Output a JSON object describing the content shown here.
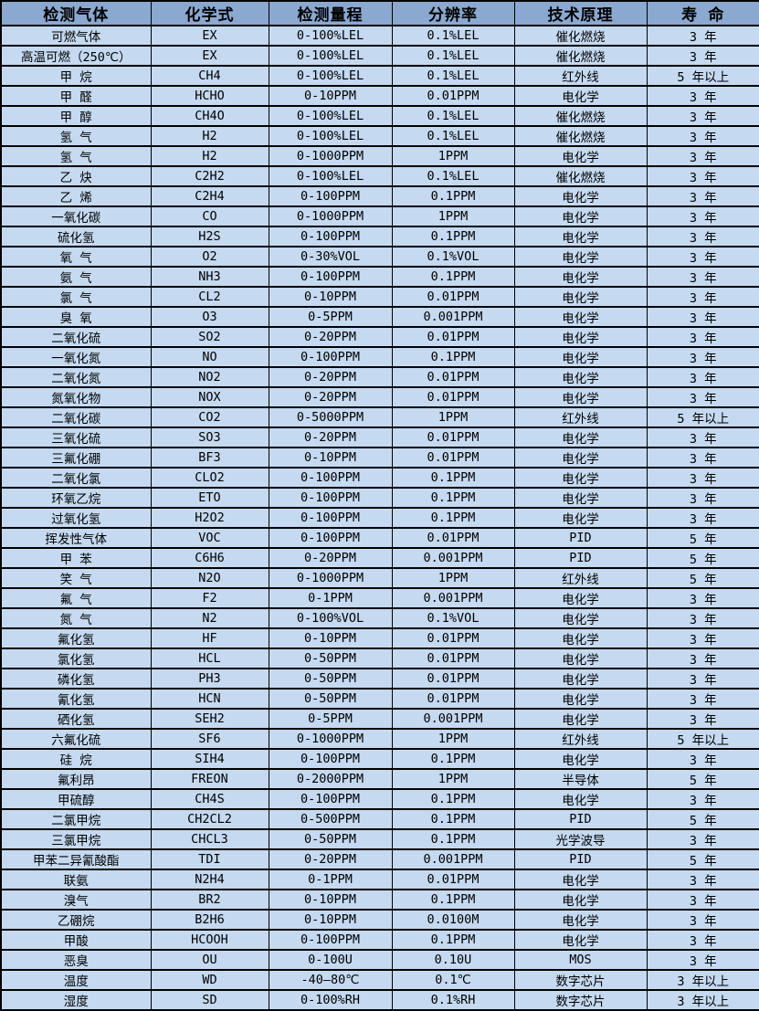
{
  "table": {
    "columns": [
      {
        "label": "检测气体"
      },
      {
        "label": "化学式"
      },
      {
        "label": "检测量程"
      },
      {
        "label": "分辨率"
      },
      {
        "label": "技术原理"
      },
      {
        "label": "寿 命"
      }
    ],
    "rows": [
      [
        "可燃气体",
        "EX",
        "0-100%LEL",
        "0.1%LEL",
        "催化燃烧",
        "3 年"
      ],
      [
        "高温可燃（250℃）",
        "EX",
        "0-100%LEL",
        "0.1%LEL",
        "催化燃烧",
        "3 年"
      ],
      [
        "甲 烷",
        "CH4",
        "0-100%LEL",
        "0.1%LEL",
        "红外线",
        "5 年以上"
      ],
      [
        "甲 醛",
        "HCHO",
        "0-10PPM",
        "0.01PPM",
        "电化学",
        "3 年"
      ],
      [
        "甲 醇",
        "CH4O",
        "0-100%LEL",
        "0.1%LEL",
        "催化燃烧",
        "3 年"
      ],
      [
        "氢 气",
        "H2",
        "0-100%LEL",
        "0.1%LEL",
        "催化燃烧",
        "3 年"
      ],
      [
        "氢 气",
        "H2",
        "0-1000PPM",
        "1PPM",
        "电化学",
        "3 年"
      ],
      [
        "乙 炔",
        "C2H2",
        "0-100%LEL",
        "0.1%LEL",
        "催化燃烧",
        "3 年"
      ],
      [
        "乙 烯",
        "C2H4",
        "0-100PPM",
        "0.1PPM",
        "电化学",
        "3 年"
      ],
      [
        "一氧化碳",
        "CO",
        "0-1000PPM",
        "1PPM",
        "电化学",
        "3 年"
      ],
      [
        "硫化氢",
        "H2S",
        "0-100PPM",
        "0.1PPM",
        "电化学",
        "3 年"
      ],
      [
        "氧 气",
        "O2",
        "0-30%VOL",
        "0.1%VOL",
        "电化学",
        "3 年"
      ],
      [
        "氨 气",
        "NH3",
        "0-100PPM",
        "0.1PPM",
        "电化学",
        "3 年"
      ],
      [
        "氯 气",
        "CL2",
        "0-10PPM",
        "0.01PPM",
        "电化学",
        "3 年"
      ],
      [
        "臭 氧",
        "O3",
        "0-5PPM",
        "0.001PPM",
        "电化学",
        "3 年"
      ],
      [
        "二氧化硫",
        "SO2",
        "0-20PPM",
        "0.01PPM",
        "电化学",
        "3 年"
      ],
      [
        "一氧化氮",
        "NO",
        "0-100PPM",
        "0.1PPM",
        "电化学",
        "3 年"
      ],
      [
        "二氧化氮",
        "NO2",
        "0-20PPM",
        "0.01PPM",
        "电化学",
        "3 年"
      ],
      [
        "氮氧化物",
        "NOX",
        "0-20PPM",
        "0.01PPM",
        "电化学",
        "3 年"
      ],
      [
        "二氧化碳",
        "CO2",
        "0-5000PPM",
        "1PPM",
        "红外线",
        "5 年以上"
      ],
      [
        "三氧化硫",
        "SO3",
        "0-20PPM",
        "0.01PPM",
        "电化学",
        "3 年"
      ],
      [
        "三氟化硼",
        "BF3",
        "0-10PPM",
        "0.01PPM",
        "电化学",
        "3 年"
      ],
      [
        "二氧化氯",
        "CLO2",
        "0-100PPM",
        "0.1PPM",
        "电化学",
        "3 年"
      ],
      [
        "环氧乙烷",
        "ETO",
        "0-100PPM",
        "0.1PPM",
        "电化学",
        "3 年"
      ],
      [
        "过氧化氢",
        "H2O2",
        "0-100PPM",
        "0.1PPM",
        "电化学",
        "3 年"
      ],
      [
        "挥发性气体",
        "VOC",
        "0-100PPM",
        "0.01PPM",
        "PID",
        "5 年"
      ],
      [
        "甲 苯",
        "C6H6",
        "0-20PPM",
        "0.001PPM",
        "PID",
        "5 年"
      ],
      [
        "笑 气",
        "N2O",
        "0-1000PPM",
        "1PPM",
        "红外线",
        "5 年"
      ],
      [
        "氟 气",
        "F2",
        "0-1PPM",
        "0.001PPM",
        "电化学",
        "3 年"
      ],
      [
        "氮 气",
        "N2",
        "0-100%VOL",
        "0.1%VOL",
        "电化学",
        "3 年"
      ],
      [
        "氟化氢",
        "HF",
        "0-10PPM",
        "0.01PPM",
        "电化学",
        "3 年"
      ],
      [
        "氯化氢",
        "HCL",
        "0-50PPM",
        "0.01PPM",
        "电化学",
        "3 年"
      ],
      [
        "磷化氢",
        "PH3",
        "0-50PPM",
        "0.01PPM",
        "电化学",
        "3 年"
      ],
      [
        "氰化氢",
        "HCN",
        "0-50PPM",
        "0.01PPM",
        "电化学",
        "3 年"
      ],
      [
        "硒化氢",
        "SEH2",
        "0-5PPM",
        "0.001PPM",
        "电化学",
        "3 年"
      ],
      [
        "六氟化硫",
        "SF6",
        "0-1000PPM",
        "1PPM",
        "红外线",
        "5 年以上"
      ],
      [
        "硅 烷",
        "SIH4",
        "0-100PPM",
        "0.1PPM",
        "电化学",
        "3 年"
      ],
      [
        "氟利昂",
        "FREON",
        "0-2000PPM",
        "1PPM",
        "半导体",
        "5 年"
      ],
      [
        "甲硫醇",
        "CH4S",
        "0-100PPM",
        "0.1PPM",
        "电化学",
        "3 年"
      ],
      [
        "二氯甲烷",
        "CH2CL2",
        "0-500PPM",
        "0.1PPM",
        "PID",
        "5 年"
      ],
      [
        "三氯甲烷",
        "CHCL3",
        "0-50PPM",
        "0.1PPM",
        "光学波导",
        "3 年"
      ],
      [
        "甲苯二异氰酸酯",
        "TDI",
        "0-20PPM",
        "0.001PPM",
        "PID",
        "5 年"
      ],
      [
        "联氨",
        "N2H4",
        "0-1PPM",
        "0.01PPM",
        "电化学",
        "3 年"
      ],
      [
        "溴气",
        "BR2",
        "0-10PPM",
        "0.1PPM",
        "电化学",
        "3 年"
      ],
      [
        "乙硼烷",
        "B2H6",
        "0-10PPM",
        "0.0100M",
        "电化学",
        "3 年"
      ],
      [
        "甲酸",
        "HCOOH",
        "0-100PPM",
        "0.1PPM",
        "电化学",
        "3 年"
      ],
      [
        "恶臭",
        "OU",
        "0-100U",
        "0.10U",
        "MOS",
        "3 年"
      ],
      [
        "温度",
        "WD",
        "-40—80℃",
        "0.1℃",
        "数字芯片",
        "3 年以上"
      ],
      [
        "湿度",
        "SD",
        "0-100%RH",
        "0.1%RH",
        "数字芯片",
        "3 年以上"
      ]
    ]
  },
  "colors": {
    "header_bg": "#8AA8D0",
    "row_bg": "#C5D9F1",
    "border": "#000000",
    "text": "#000000"
  }
}
